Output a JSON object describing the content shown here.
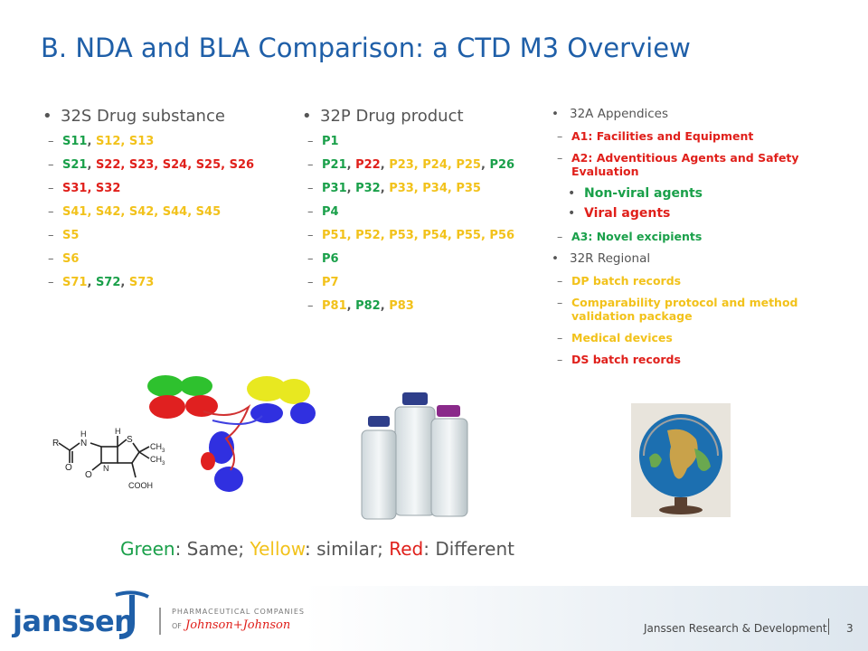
{
  "title": "B. NDA and BLA Comparison: a CTD M3 Overview",
  "col1": {
    "heading": "32S Drug substance",
    "items": [
      [
        {
          "t": "S11",
          "c": "g"
        },
        {
          "t": ", ",
          "c": "k"
        },
        {
          "t": "S12, S13",
          "c": "y"
        }
      ],
      [
        {
          "t": "S21",
          "c": "g"
        },
        {
          "t": ", ",
          "c": "k"
        },
        {
          "t": "S22, S23, S24, S25, S26",
          "c": "r"
        }
      ],
      [
        {
          "t": "S31, S32",
          "c": "r"
        }
      ],
      [
        {
          "t": "S41, S42, S42, S44, S45",
          "c": "y"
        }
      ],
      [
        {
          "t": "S5",
          "c": "y"
        }
      ],
      [
        {
          "t": "S6",
          "c": "y"
        }
      ],
      [
        {
          "t": "S71",
          "c": "y"
        },
        {
          "t": ", ",
          "c": "k"
        },
        {
          "t": "S72",
          "c": "g"
        },
        {
          "t": ", ",
          "c": "k"
        },
        {
          "t": "S73",
          "c": "y"
        }
      ]
    ]
  },
  "col2": {
    "heading": "32P Drug product",
    "items": [
      [
        {
          "t": "P1",
          "c": "g"
        }
      ],
      [
        {
          "t": "P21",
          "c": "g"
        },
        {
          "t": ", ",
          "c": "k"
        },
        {
          "t": "P22",
          "c": "r"
        },
        {
          "t": ", ",
          "c": "k"
        },
        {
          "t": "P23, P24, P25",
          "c": "y"
        },
        {
          "t": ", ",
          "c": "k"
        },
        {
          "t": "P26",
          "c": "g"
        }
      ],
      [
        {
          "t": "P31",
          "c": "g"
        },
        {
          "t": ", ",
          "c": "k"
        },
        {
          "t": "P32",
          "c": "g"
        },
        {
          "t": ", ",
          "c": "k"
        },
        {
          "t": "P33, P34, P35",
          "c": "y"
        }
      ],
      [
        {
          "t": "P4",
          "c": "g"
        }
      ],
      [
        {
          "t": "P51, P52, P53, P54, P55, P56",
          "c": "y"
        }
      ],
      [
        {
          "t": "P6",
          "c": "g"
        }
      ],
      [
        {
          "t": "P7",
          "c": "y"
        }
      ],
      [
        {
          "t": "P81",
          "c": "y"
        },
        {
          "t": ", ",
          "c": "k"
        },
        {
          "t": "P82",
          "c": "g"
        },
        {
          "t": ", ",
          "c": "k"
        },
        {
          "t": "P83",
          "c": "y"
        }
      ]
    ]
  },
  "col3": {
    "heading_a": "32A Appendices",
    "a1": "A1: Facilities and Equipment",
    "a2": "A2: Adventitious Agents and Safety Evaluation",
    "a2_sub1": "Non-viral agents",
    "a2_sub2": "Viral agents",
    "a3": "A3: Novel excipients",
    "heading_r": "32R Regional",
    "r1": "DP batch records",
    "r2": "Comparability protocol and method validation package",
    "r3": "Medical devices",
    "r4": "DS batch records"
  },
  "legend": {
    "green": "Green",
    "green_text": ": Same; ",
    "yellow": "Yellow",
    "yellow_text": ": similar; ",
    "red": "Red",
    "red_text": ": Different"
  },
  "molecule": {
    "r": "R",
    "n": "N",
    "h1": "H",
    "h2": "H",
    "s": "S",
    "ch3a": "CH",
    "ch3b": "CH",
    "three": "3",
    "n2": "N",
    "o1": "O",
    "o2": "O",
    "cooh": "COOH"
  },
  "footer": {
    "brand": "janssen",
    "pharma": "PHARMACEUTICAL COMPANIES",
    "of": "OF",
    "jnj": "Johnson+Johnson",
    "rd": "Janssen Research & Development",
    "page": "3"
  },
  "colors": {
    "green": "#1aa04a",
    "yellow": "#f2c21b",
    "red": "#e0201b",
    "title_blue": "#1f5fa8"
  }
}
